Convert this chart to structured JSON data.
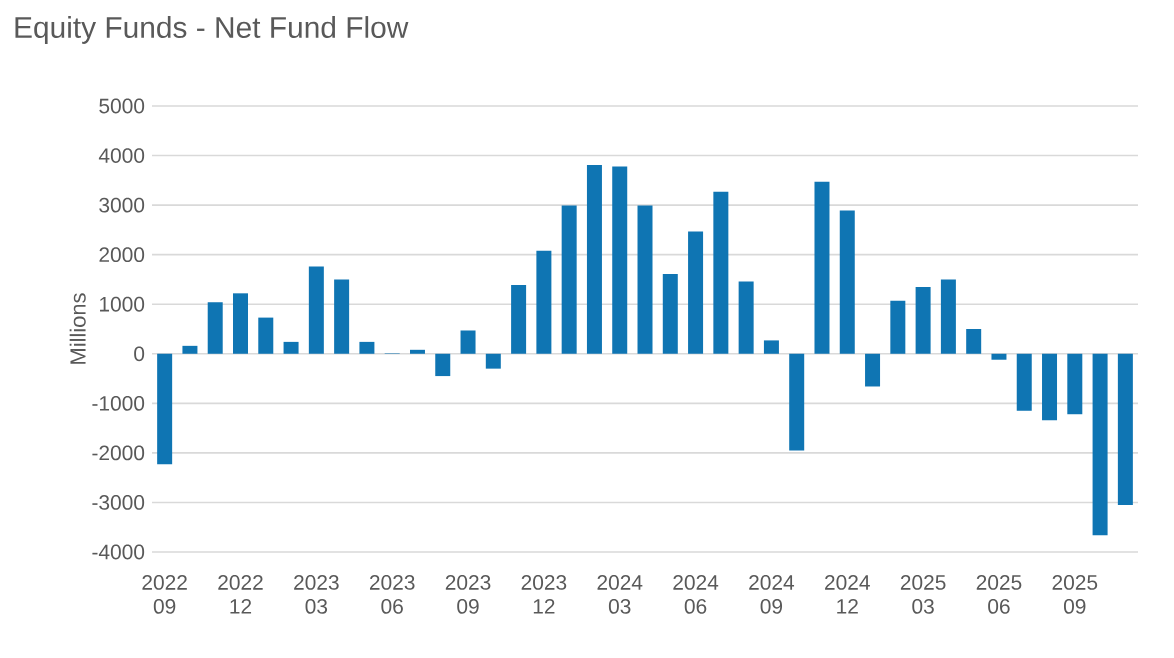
{
  "chart_data": {
    "type": "bar",
    "title": "Equity Funds - Net Fund Flow",
    "ylabel": "Millions",
    "categories": [
      "2022 09",
      null,
      null,
      "2022 12",
      null,
      null,
      "2023 03",
      null,
      null,
      "2023 06",
      null,
      null,
      "2023 09",
      null,
      null,
      "2023 12",
      null,
      null,
      "2024 03",
      null,
      null,
      "2024 06",
      null,
      null,
      "2024 09",
      null,
      null,
      "2024 12",
      null,
      null,
      "2025 03",
      null,
      null,
      "2025 06",
      null,
      null,
      "2025 09",
      null,
      null
    ],
    "values": [
      -2230,
      160,
      1040,
      1220,
      730,
      240,
      1760,
      1500,
      240,
      10,
      80,
      -450,
      470,
      -300,
      1390,
      2080,
      2990,
      3810,
      3780,
      2990,
      1610,
      2470,
      3270,
      1460,
      270,
      -1950,
      3470,
      2890,
      -660,
      1070,
      1350,
      1500,
      500,
      -120,
      -1150,
      -1340,
      -1220,
      -3660,
      -3050
    ],
    "color": "#0f75b3",
    "ylim": [
      -4000,
      5000
    ],
    "yticks": [
      -4000,
      -3000,
      -2000,
      -1000,
      0,
      1000,
      2000,
      3000,
      4000,
      5000
    ],
    "grid": "y"
  }
}
